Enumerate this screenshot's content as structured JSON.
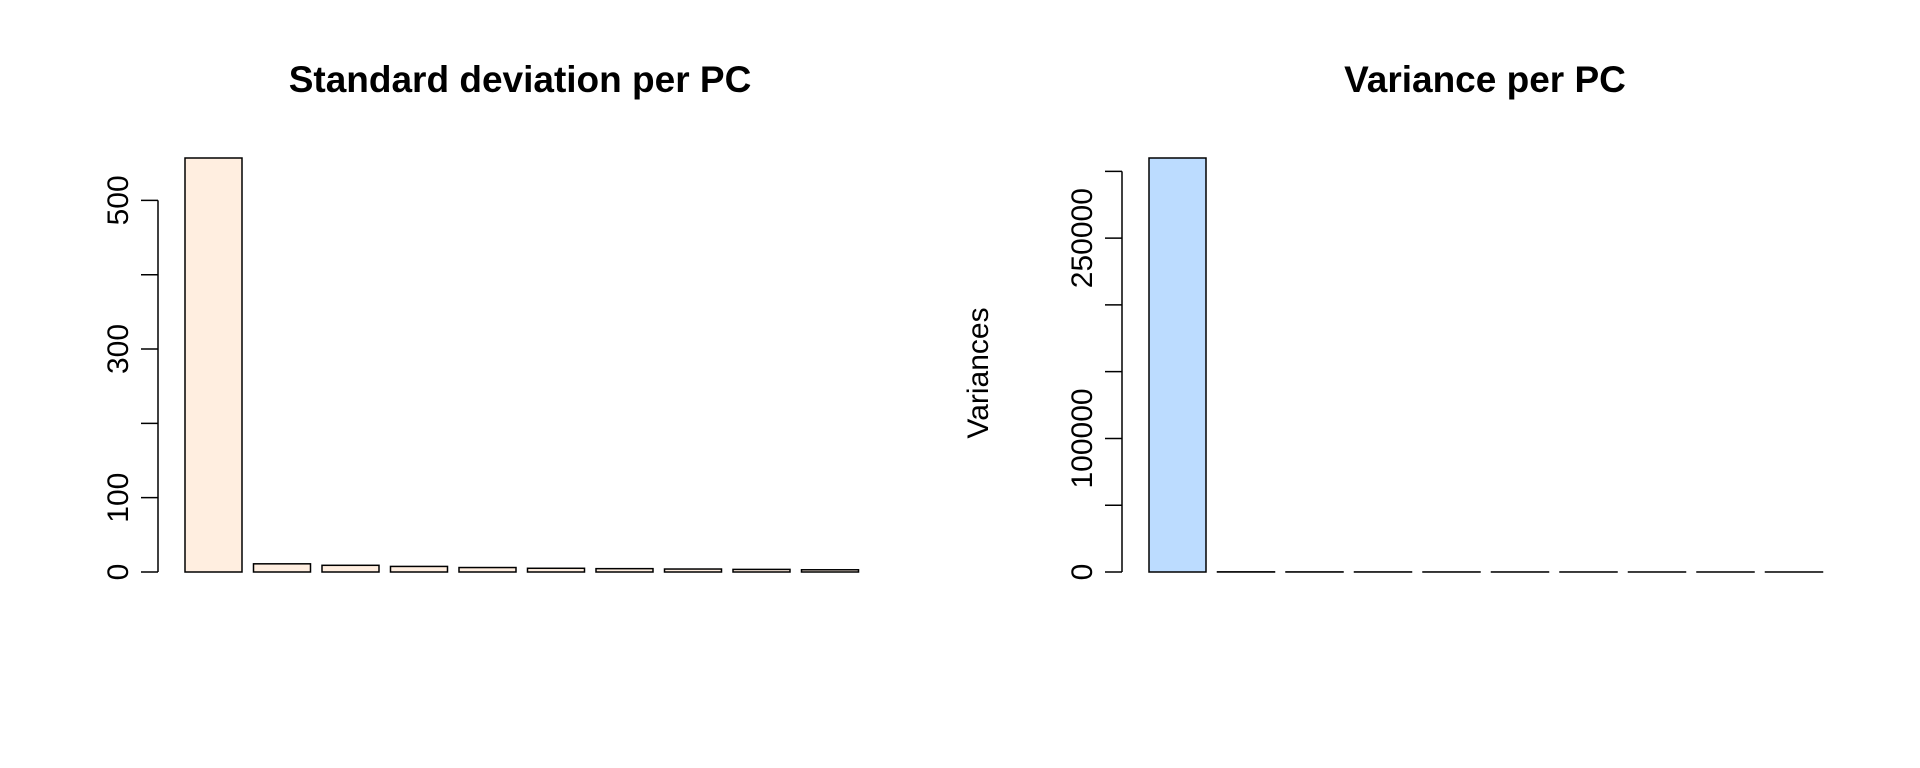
{
  "chart_data": [
    {
      "id": "sd",
      "type": "bar",
      "title": "Standard deviation per PC",
      "xlabel": "",
      "ylabel": "",
      "values": [
        557,
        11,
        9,
        7.5,
        6,
        5,
        4.5,
        4,
        3.5,
        3
      ],
      "ylim": [
        0,
        557
      ],
      "yticks": [
        0,
        100,
        200,
        300,
        400,
        500
      ],
      "ytick_labels": [
        "0",
        "100",
        "",
        "300",
        "",
        "500"
      ],
      "fill_color": "#FFEEE0",
      "grid": false
    },
    {
      "id": "var",
      "type": "bar",
      "title": "Variance per PC",
      "xlabel": "",
      "ylabel": "Variances",
      "values": [
        310000,
        121,
        81,
        56,
        36,
        25,
        20,
        16,
        12,
        9
      ],
      "ylim": [
        0,
        310000
      ],
      "yticks": [
        0,
        50000,
        100000,
        150000,
        200000,
        250000,
        300000
      ],
      "ytick_labels": [
        "0",
        "",
        "100000",
        "",
        "",
        "250000",
        ""
      ],
      "fill_color": "#BCDCFF",
      "grid": false
    }
  ]
}
